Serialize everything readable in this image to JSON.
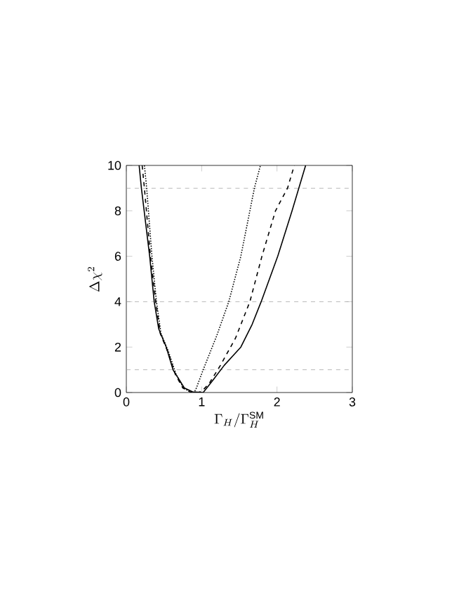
{
  "chart_data": {
    "type": "line",
    "xlabel": "\\Gamma_H/\\Gamma_H^{\\rm SM}",
    "ylabel": "\\Delta\\chi^2",
    "xlim": [
      0,
      3
    ],
    "ylim": [
      0,
      10
    ],
    "xticks": [
      0,
      1,
      2,
      3
    ],
    "yticks": [
      0,
      2,
      4,
      6,
      8,
      10
    ],
    "series": [
      {
        "color": "#000000",
        "line_style": "solid",
        "x": [
          0.17,
          0.2,
          0.31,
          0.37,
          0.43,
          0.53,
          0.62,
          0.77,
          0.88,
          1.02,
          1.14,
          1.3,
          1.52,
          1.67,
          1.79,
          2.01,
          2.2,
          2.38
        ],
        "values": [
          10,
          9,
          6,
          4,
          2.8,
          2,
          1,
          0.2,
          0.03,
          0,
          0.5,
          1.2,
          2,
          3,
          4,
          6,
          8,
          10
        ]
      },
      {
        "color": "#000000",
        "line_style": "dashed",
        "x": [
          0.21,
          0.24,
          0.32,
          0.39,
          0.45,
          0.55,
          0.65,
          0.75,
          0.85,
          0.95,
          1.0,
          1.1,
          1.25,
          1.45,
          1.64,
          1.8,
          1.98,
          2.14,
          2.23
        ],
        "values": [
          10,
          9,
          6,
          4,
          2.6,
          1.8,
          0.8,
          0.2,
          0.02,
          0,
          0.05,
          0.4,
          1.2,
          2.4,
          4,
          6,
          8,
          9,
          10
        ]
      },
      {
        "color": "#000000",
        "line_style": "dotted",
        "x": [
          0.24,
          0.27,
          0.34,
          0.4,
          0.46,
          0.56,
          0.66,
          0.76,
          0.85,
          0.9,
          0.93,
          1.02,
          1.2,
          1.36,
          1.52,
          1.7,
          1.78
        ],
        "values": [
          10,
          9,
          6,
          4,
          2.6,
          1.8,
          0.8,
          0.2,
          0.02,
          0,
          0.2,
          1,
          2.5,
          4,
          6,
          9,
          10
        ]
      }
    ],
    "ref_lines": [
      {
        "axis": "y",
        "value": 1,
        "color": "#a0a0a0",
        "line_style": "dashed"
      },
      {
        "axis": "y",
        "value": 4,
        "color": "#a0a0a0",
        "line_style": "dashed"
      },
      {
        "axis": "y",
        "value": 9,
        "color": "#a0a0a0",
        "line_style": "dashed"
      }
    ]
  }
}
